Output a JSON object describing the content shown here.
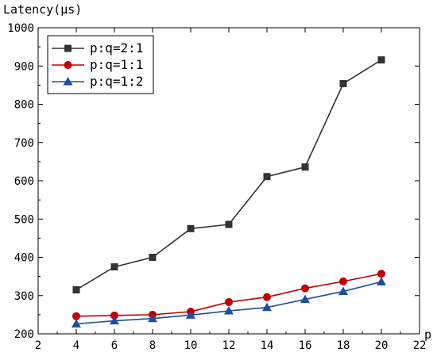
{
  "chart_data": {
    "type": "line",
    "ylabel": "Latency(μs)",
    "xlabel": "p",
    "xlim": [
      2,
      22
    ],
    "ylim": [
      200,
      1000
    ],
    "xticks": [
      2,
      4,
      6,
      8,
      10,
      12,
      14,
      16,
      18,
      20,
      22
    ],
    "yticks": [
      200,
      300,
      400,
      500,
      600,
      700,
      800,
      900,
      1000
    ],
    "x": [
      4,
      6,
      8,
      10,
      12,
      14,
      16,
      18,
      20
    ],
    "legend_position": "top-left",
    "grid": false,
    "series": [
      {
        "name": "p:q=2:1",
        "color": "#333333",
        "marker": "square",
        "values": [
          315,
          375,
          400,
          475,
          486,
          611,
          636,
          854,
          916
        ]
      },
      {
        "name": "p:q=1:1",
        "color": "#c00000",
        "marker": "circle",
        "values": [
          246,
          248,
          250,
          258,
          283,
          296,
          319,
          337,
          357
        ]
      },
      {
        "name": "p:q=1:2",
        "color": "#1f4e9a",
        "marker": "triangle",
        "values": [
          226,
          234,
          240,
          249,
          260,
          269,
          290,
          311,
          336
        ]
      }
    ]
  }
}
